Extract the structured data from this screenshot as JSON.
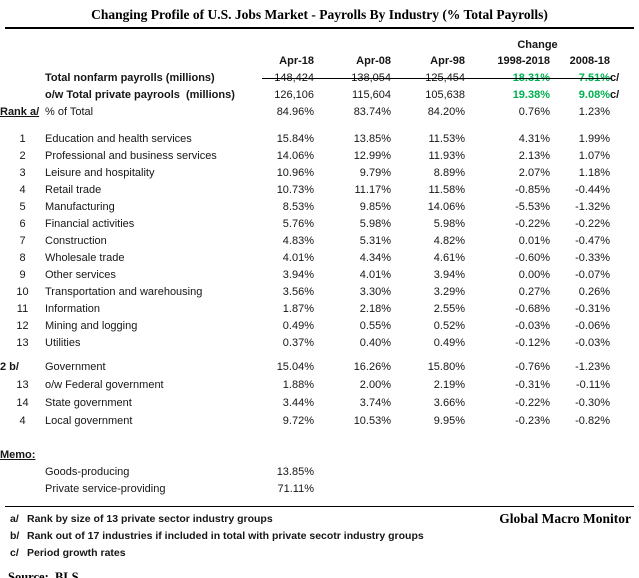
{
  "title": "Changing Profile of U.S. Jobs Market - Payrolls By Industry (% Total Payrolls)",
  "colors": {
    "green": "#00B050",
    "text": "#161616",
    "rule": "#000000"
  },
  "chart_data": {
    "type": "table",
    "title": "Changing Profile of U.S. Jobs Market - Payrolls By Industry (% Total Payrolls)",
    "change_group_label": "Change",
    "columns": [
      "Apr-18",
      "Apr-08",
      "Apr-98",
      "1998-2018",
      "2008-18"
    ],
    "summary": {
      "nonfarm": {
        "label": "Total nonfarm payrolls (millions)",
        "values": [
          "148,424",
          "138,054",
          "125,454",
          "18.31%",
          "7.51%"
        ],
        "note": "c/"
      },
      "private": {
        "label": "o/w Total private payrools  (millions)",
        "values": [
          "126,106",
          "115,604",
          "105,638",
          "19.38%",
          "9.08%"
        ],
        "note": "c/"
      },
      "pct_of_total": {
        "rank_label": "Rank a/",
        "label": "% of Total",
        "values": [
          "84.96%",
          "83.74%",
          "84.20%",
          "0.76%",
          "1.23%"
        ]
      }
    },
    "industries": [
      {
        "rank": "1",
        "label": "Education and health services",
        "values": [
          "15.84%",
          "13.85%",
          "11.53%",
          "4.31%",
          "1.99%"
        ]
      },
      {
        "rank": "2",
        "label": "Professional and business services",
        "values": [
          "14.06%",
          "12.99%",
          "11.93%",
          "2.13%",
          "1.07%"
        ]
      },
      {
        "rank": "3",
        "label": "Leisure and hospitality",
        "values": [
          "10.96%",
          "9.79%",
          "8.89%",
          "2.07%",
          "1.18%"
        ]
      },
      {
        "rank": "4",
        "label": "Retail trade",
        "values": [
          "10.73%",
          "11.17%",
          "11.58%",
          "-0.85%",
          "-0.44%"
        ]
      },
      {
        "rank": "5",
        "label": "Manufacturing",
        "values": [
          "8.53%",
          "9.85%",
          "14.06%",
          "-5.53%",
          "-1.32%"
        ]
      },
      {
        "rank": "6",
        "label": "Financial activities",
        "values": [
          "5.76%",
          "5.98%",
          "5.98%",
          "-0.22%",
          "-0.22%"
        ]
      },
      {
        "rank": "7",
        "label": "Construction",
        "values": [
          "4.83%",
          "5.31%",
          "4.82%",
          "0.01%",
          "-0.47%"
        ]
      },
      {
        "rank": "8",
        "label": "Wholesale trade",
        "values": [
          "4.01%",
          "4.34%",
          "4.61%",
          "-0.60%",
          "-0.33%"
        ]
      },
      {
        "rank": "9",
        "label": "Other services",
        "values": [
          "3.94%",
          "4.01%",
          "3.94%",
          "0.00%",
          "-0.07%"
        ]
      },
      {
        "rank": "10",
        "label": "Transportation and warehousing",
        "values": [
          "3.56%",
          "3.30%",
          "3.29%",
          "0.27%",
          "0.26%"
        ]
      },
      {
        "rank": "11",
        "label": "Information",
        "values": [
          "1.87%",
          "2.18%",
          "2.55%",
          "-0.68%",
          "-0.31%"
        ]
      },
      {
        "rank": "12",
        "label": "Mining and logging",
        "values": [
          "0.49%",
          "0.55%",
          "0.52%",
          "-0.03%",
          "-0.06%"
        ]
      },
      {
        "rank": "13",
        "label": "Utilities",
        "values": [
          "0.37%",
          "0.40%",
          "0.49%",
          "-0.12%",
          "-0.03%"
        ]
      }
    ],
    "government": [
      {
        "rank": "2 b/",
        "label": "Government",
        "indent": 0,
        "values": [
          "15.04%",
          "16.26%",
          "15.80%",
          "-0.76%",
          "-1.23%"
        ]
      },
      {
        "rank": "13",
        "label": "o/w Federal government",
        "indent": 1,
        "values": [
          "1.88%",
          "2.00%",
          "2.19%",
          "-0.31%",
          "-0.11%"
        ]
      },
      {
        "rank": "14",
        "label": "State government",
        "indent": 2,
        "values": [
          "3.44%",
          "3.74%",
          "3.66%",
          "-0.22%",
          "-0.30%"
        ]
      },
      {
        "rank": "4",
        "label": "Local government",
        "indent": 2,
        "values": [
          "9.72%",
          "10.53%",
          "9.95%",
          "-0.23%",
          "-0.82%"
        ]
      }
    ],
    "memo": {
      "label": "Memo:",
      "rows": [
        {
          "label": "Goods-producing",
          "value": "13.85%"
        },
        {
          "label": "Private service-providing",
          "value": "71.11%"
        }
      ]
    }
  },
  "footnotes": [
    {
      "marker": "a/",
      "text": "Rank by size of 13 private sector industry groups"
    },
    {
      "marker": "b/",
      "text": "Rank out of 17 industries if included in total with private secotr industry groups"
    },
    {
      "marker": "c/",
      "text": "Period growth rates"
    }
  ],
  "brand": "Global Macro Monitor",
  "source_label": "Source:  BLS"
}
